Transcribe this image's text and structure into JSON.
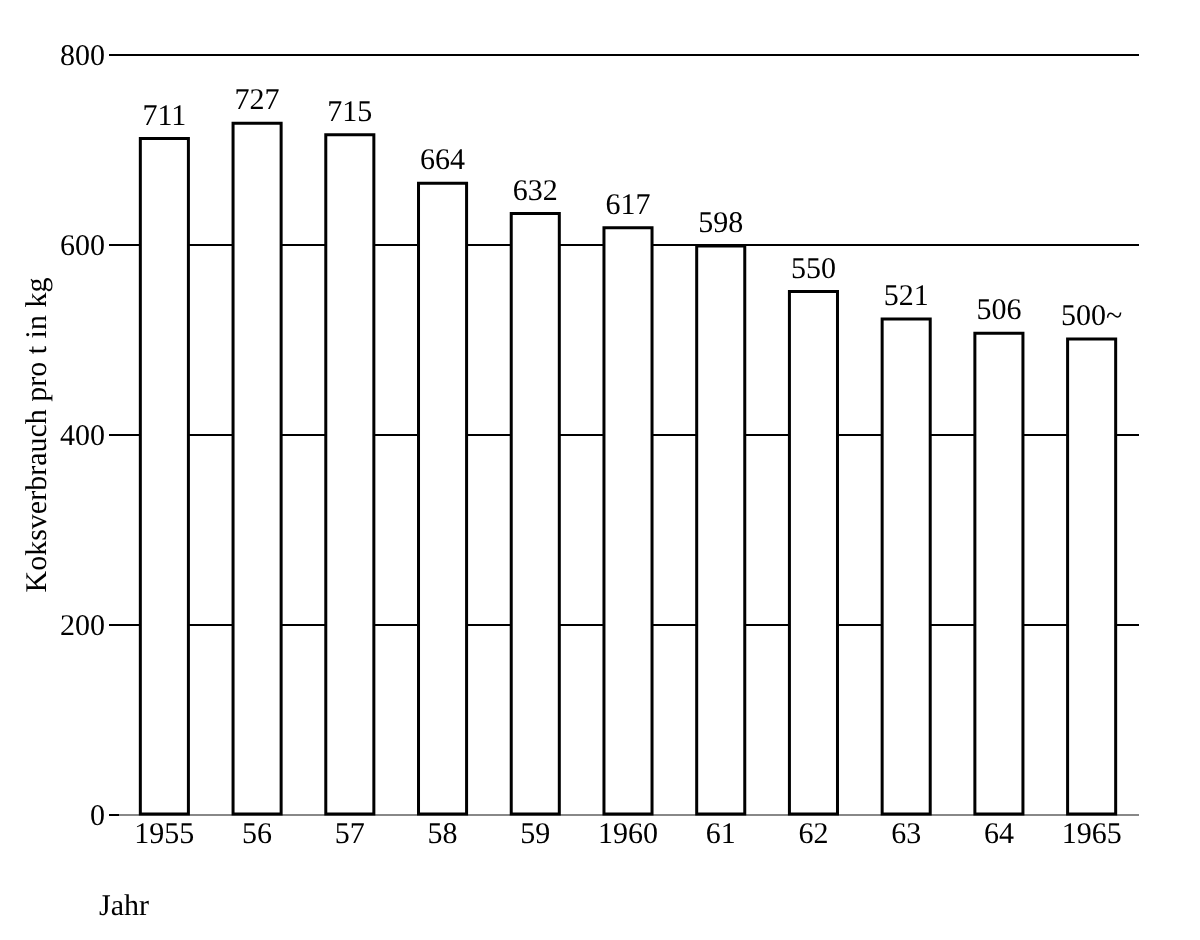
{
  "chart_data": {
    "type": "bar",
    "xlabel": "Jahr",
    "ylabel": "Koksverbrauch pro t in kg",
    "categories": [
      "1955",
      "56",
      "57",
      "58",
      "59",
      "1960",
      "61",
      "62",
      "63",
      "64",
      "1965"
    ],
    "values": [
      711,
      727,
      715,
      664,
      632,
      617,
      598,
      550,
      521,
      506,
      500
    ],
    "value_labels": [
      "711",
      "727",
      "715",
      "664",
      "632",
      "617",
      "598",
      "550",
      "521",
      "506",
      "500~"
    ],
    "color": "#ffffff",
    "ylim": [
      0,
      800
    ],
    "yticks": [
      0,
      200,
      400,
      600,
      800
    ],
    "grid": "y"
  }
}
